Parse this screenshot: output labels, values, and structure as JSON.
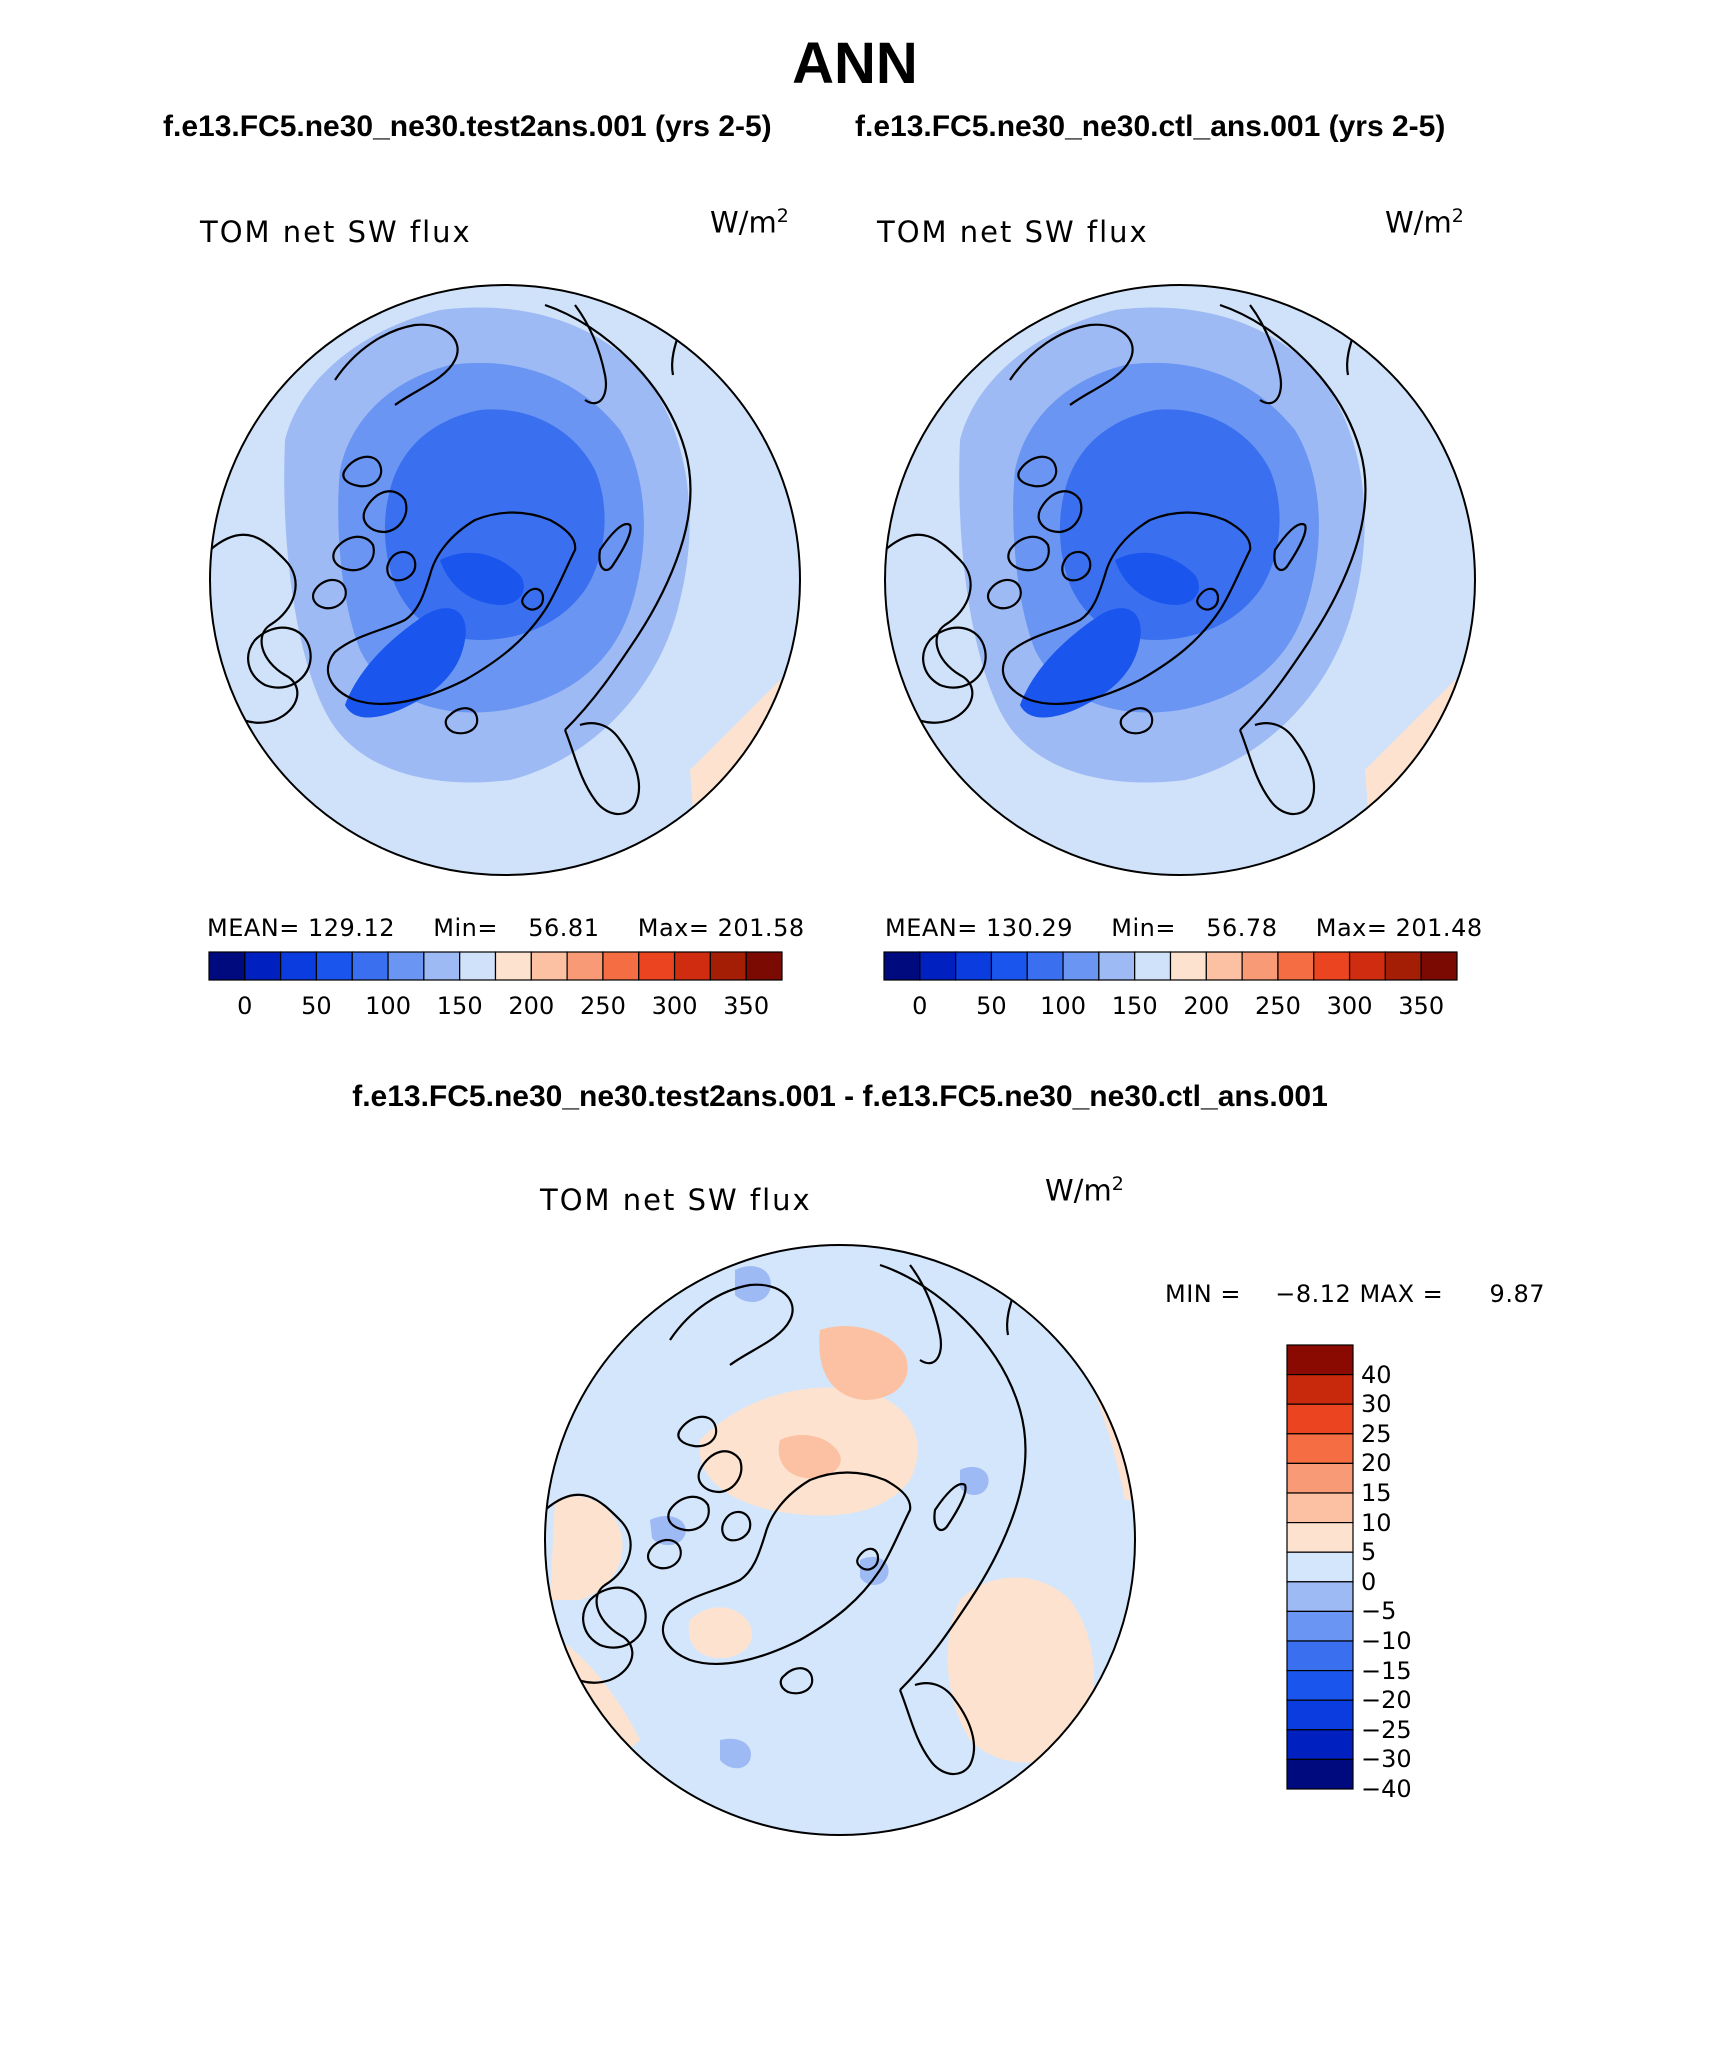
{
  "title": "ANN",
  "left_subtitle": "f.e13.FC5.ne30_ne30.test2ans.001 (yrs 2-5)",
  "right_subtitle": "f.e13.FC5.ne30_ne30.ctl_ans.001 (yrs 2-5)",
  "diff_title": "f.e13.FC5.ne30_ne30.test2ans.001 - f.e13.FC5.ne30_ne30.ctl_ans.001",
  "colors": {
    "coast": "#000000",
    "abs_palette": [
      "#000a7f",
      "#0020c0",
      "#0a3ce0",
      "#1a55ee",
      "#3a70f0",
      "#6a95f2",
      "#9ebaf5",
      "#cfe2fa",
      "#fde3cf",
      "#fcc0a3",
      "#f99a76",
      "#f46d43",
      "#ea4520",
      "#d02c10",
      "#a41e06",
      "#7a0a02"
    ],
    "diff_palette": [
      "#000a7f",
      "#0020c0",
      "#0a3ce0",
      "#1a55ee",
      "#3a70f0",
      "#6a95f2",
      "#9ebaf5",
      "#d4e6fb",
      "#fde3cf",
      "#fcc0a3",
      "#f99a76",
      "#f46d43",
      "#ea4520",
      "#c8280c",
      "#8a0a02"
    ]
  },
  "chart_data": [
    {
      "type": "heatmap",
      "projection": "north-polar-stereographic",
      "panel": "top-left",
      "title": "TOM net SW flux",
      "units": "W/m",
      "units_exp": "2",
      "mean_label": "MEAN=",
      "mean": "129.12",
      "min_label": "Min=",
      "min": "56.81",
      "max_label": "Max=",
      "max": "201.58",
      "colorbar_ticks": [
        "0",
        "50",
        "100",
        "150",
        "200",
        "250",
        "300",
        "350"
      ]
    },
    {
      "type": "heatmap",
      "projection": "north-polar-stereographic",
      "panel": "top-right",
      "title": "TOM net SW flux",
      "units": "W/m",
      "units_exp": "2",
      "mean_label": "MEAN=",
      "mean": "130.29",
      "min_label": "Min=",
      "min": "56.78",
      "max_label": "Max=",
      "max": "201.48",
      "colorbar_ticks": [
        "0",
        "50",
        "100",
        "150",
        "200",
        "250",
        "300",
        "350"
      ]
    },
    {
      "type": "heatmap",
      "projection": "north-polar-stereographic",
      "panel": "bottom-difference",
      "title": "TOM net SW flux",
      "units": "W/m",
      "units_exp": "2",
      "min_label": "MIN =",
      "min": "−8.12",
      "max_label": "MAX =",
      "max": "9.87",
      "colorbar_ticks": [
        "40",
        "30",
        "25",
        "20",
        "15",
        "10",
        "5",
        "0",
        "−5",
        "−10",
        "−15",
        "−20",
        "−25",
        "−30",
        "−40"
      ]
    }
  ]
}
